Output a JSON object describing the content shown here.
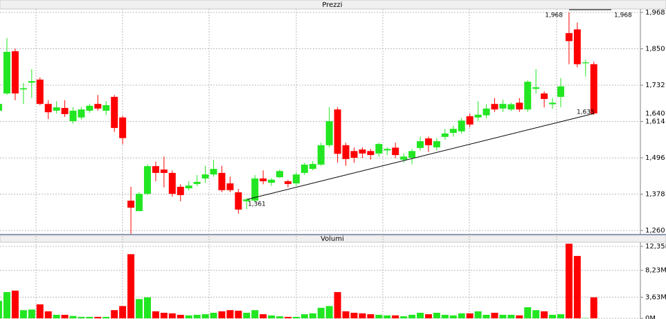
{
  "chart_data": [
    {
      "type": "candlestick",
      "title": "Prezzi",
      "open": [
        1.649,
        1.705,
        1.842,
        1.718,
        1.74,
        1.75,
        1.671,
        1.649,
        1.658,
        1.615,
        1.627,
        1.649,
        1.671,
        1.649,
        1.694,
        1.627,
        1.357,
        1.323,
        1.379,
        1.469,
        1.458,
        1.447,
        1.402,
        1.397,
        1.411,
        1.429,
        1.442,
        1.447,
        1.413,
        1.384,
        1.355,
        1.357,
        1.429,
        1.415,
        1.433,
        1.42,
        1.413,
        1.447,
        1.46,
        1.474,
        1.537,
        1.653,
        1.537,
        1.518,
        1.523,
        1.518,
        1.51,
        1.52,
        1.529,
        1.49,
        1.496,
        1.528,
        1.559,
        1.53,
        1.564,
        1.577,
        1.582,
        1.631,
        1.627,
        1.634,
        1.671,
        1.656,
        1.653,
        1.675,
        1.653,
        1.72,
        1.705,
        1.67,
        1.694,
        1.901,
        1.913,
        1.803,
        1.8
      ],
      "high": [
        1.675,
        1.885,
        1.851,
        1.739,
        1.784,
        1.757,
        1.683,
        1.68,
        1.683,
        1.66,
        1.66,
        1.671,
        1.7,
        1.68,
        1.7,
        1.632,
        1.402,
        1.385,
        1.475,
        1.484,
        1.5,
        1.455,
        1.41,
        1.42,
        1.44,
        1.47,
        1.49,
        1.47,
        1.435,
        1.395,
        1.365,
        1.44,
        1.455,
        1.43,
        1.458,
        1.425,
        1.45,
        1.48,
        1.485,
        1.545,
        1.66,
        1.66,
        1.545,
        1.53,
        1.53,
        1.525,
        1.545,
        1.53,
        1.545,
        1.51,
        1.525,
        1.565,
        1.565,
        1.56,
        1.59,
        1.6,
        1.625,
        1.64,
        1.68,
        1.67,
        1.69,
        1.685,
        1.675,
        1.69,
        1.748,
        1.784,
        1.712,
        1.69,
        1.755,
        1.968,
        1.935,
        1.815,
        1.808
      ],
      "low": [
        1.615,
        1.7,
        1.683,
        1.671,
        1.69,
        1.667,
        1.622,
        1.64,
        1.629,
        1.607,
        1.62,
        1.642,
        1.649,
        1.635,
        1.58,
        1.54,
        1.249,
        1.323,
        1.375,
        1.42,
        1.4,
        1.37,
        1.355,
        1.39,
        1.405,
        1.415,
        1.435,
        1.385,
        1.385,
        1.315,
        1.33,
        1.35,
        1.41,
        1.405,
        1.43,
        1.4,
        1.405,
        1.44,
        1.455,
        1.47,
        1.53,
        1.48,
        1.47,
        1.48,
        1.495,
        1.49,
        1.5,
        1.505,
        1.495,
        1.48,
        1.475,
        1.52,
        1.515,
        1.52,
        1.555,
        1.565,
        1.575,
        1.595,
        1.615,
        1.625,
        1.645,
        1.645,
        1.648,
        1.645,
        1.645,
        1.705,
        1.66,
        1.655,
        1.66,
        1.8,
        1.79,
        1.76,
        1.635
      ],
      "close": [
        1.671,
        1.84,
        1.705,
        1.722,
        1.745,
        1.671,
        1.644,
        1.66,
        1.638,
        1.649,
        1.653,
        1.665,
        1.656,
        1.667,
        1.593,
        1.56,
        1.334,
        1.379,
        1.469,
        1.447,
        1.447,
        1.379,
        1.375,
        1.406,
        1.418,
        1.442,
        1.46,
        1.391,
        1.391,
        1.328,
        1.361,
        1.429,
        1.42,
        1.425,
        1.453,
        1.411,
        1.442,
        1.474,
        1.476,
        1.537,
        1.615,
        1.509,
        1.492,
        1.496,
        1.51,
        1.505,
        1.541,
        1.525,
        1.505,
        1.5,
        1.518,
        1.55,
        1.537,
        1.55,
        1.575,
        1.59,
        1.617,
        1.604,
        1.636,
        1.656,
        1.653,
        1.671,
        1.67,
        1.653,
        1.743,
        1.725,
        1.687,
        1.675,
        1.728,
        1.875,
        1.8,
        1.806,
        1.64
      ],
      "up_color": "#22e622",
      "down_color": "#ff0000",
      "ylim": [
        1.249,
        1.977
      ],
      "yticks": [
        {
          "value": 1.26,
          "label": "1,260"
        },
        {
          "value": 1.378,
          "label": "1,378"
        },
        {
          "value": 1.496,
          "label": "1,496"
        },
        {
          "value": 1.614,
          "label": "1,614"
        },
        {
          "value": 1.732,
          "label": "1,732"
        },
        {
          "value": 1.85,
          "label": "1,850"
        },
        {
          "value": 1.968,
          "label": "1,968"
        }
      ],
      "last_price": {
        "value": 1.64,
        "label": "1,640"
      },
      "annotations": [
        {
          "value": 1.968,
          "label": "1,968"
        },
        {
          "value": 1.968,
          "label": "1,968"
        },
        {
          "value": 1.635,
          "label": "1,635"
        },
        {
          "value": 1.361,
          "label": "1,361"
        }
      ],
      "grid": true
    },
    {
      "type": "bar",
      "title": "Volumi",
      "values": [
        3.0,
        4.5,
        4.75,
        1.4,
        1.5,
        2.4,
        1.2,
        0.6,
        0.6,
        0.4,
        0.25,
        0.25,
        0.25,
        0.25,
        1.4,
        2.1,
        11.0,
        3.3,
        3.6,
        1.2,
        0.95,
        0.85,
        0.6,
        0.5,
        0.6,
        0.7,
        0.95,
        1.2,
        1.4,
        1.3,
        0.95,
        1.4,
        0.7,
        0.5,
        0.35,
        0.25,
        0.25,
        0.7,
        0.85,
        1.8,
        2.1,
        4.5,
        1.2,
        0.95,
        0.85,
        0.7,
        0.6,
        0.5,
        0.5,
        0.35,
        0.6,
        0.95,
        0.7,
        0.95,
        0.6,
        0.5,
        0.85,
        0.85,
        1.2,
        0.6,
        0.95,
        0.6,
        0.6,
        0.5,
        1.9,
        1.4,
        1.2,
        0.6,
        0.7,
        12.8,
        10.7,
        0.05,
        3.6
      ],
      "ylim": [
        0,
        13.06
      ],
      "yticks": [
        {
          "value": 0,
          "label": "0M"
        },
        {
          "value": 3.63,
          "label": "3,63M"
        },
        {
          "value": 8.23,
          "label": "8,23M"
        },
        {
          "value": 12.35,
          "label": "12,35M"
        }
      ],
      "grid": true
    }
  ]
}
